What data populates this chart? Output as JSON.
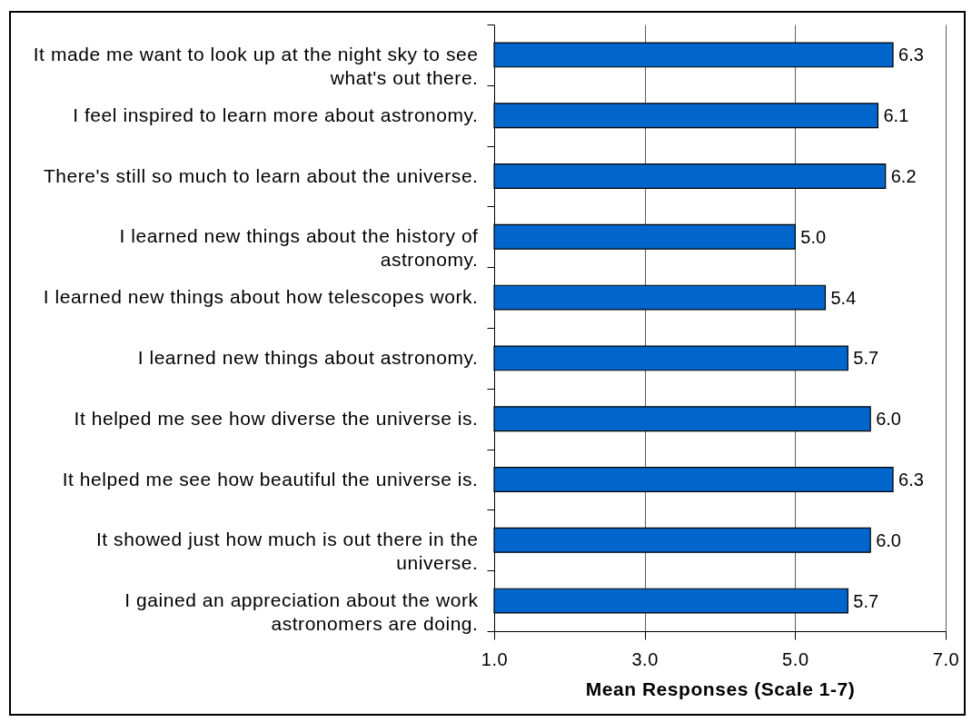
{
  "chart_data": {
    "type": "bar",
    "orientation": "horizontal",
    "categories": [
      "It made me want to look up at the night sky to see what's out there.",
      "I feel inspired to learn more about astronomy.",
      "There's still so much to learn about the universe.",
      "I learned new things about the history of astronomy.",
      "I learned new things about how telescopes work.",
      "I learned new things about astronomy.",
      "It helped me see how diverse the universe is.",
      "It helped me see how beautiful the universe is.",
      "It showed just how much is out there in the universe.",
      "I gained an appreciation about the work astronomers are doing."
    ],
    "values": [
      6.3,
      6.1,
      6.2,
      5.0,
      5.4,
      5.7,
      6.0,
      6.3,
      6.0,
      5.7
    ],
    "value_labels": [
      "6.3",
      "6.1",
      "6.2",
      "5.0",
      "5.4",
      "5.7",
      "6.0",
      "6.3",
      "6.0",
      "5.7"
    ],
    "color": "#0066cc",
    "xlabel": "Mean Responses (Scale 1-7)",
    "xlim": [
      1,
      7
    ],
    "xticks": [
      {
        "value": 1,
        "label": "1.0"
      },
      {
        "value": 3,
        "label": "3.0"
      },
      {
        "value": 5,
        "label": "5.0"
      },
      {
        "value": 7,
        "label": "7.0"
      }
    ],
    "grid": "x"
  }
}
